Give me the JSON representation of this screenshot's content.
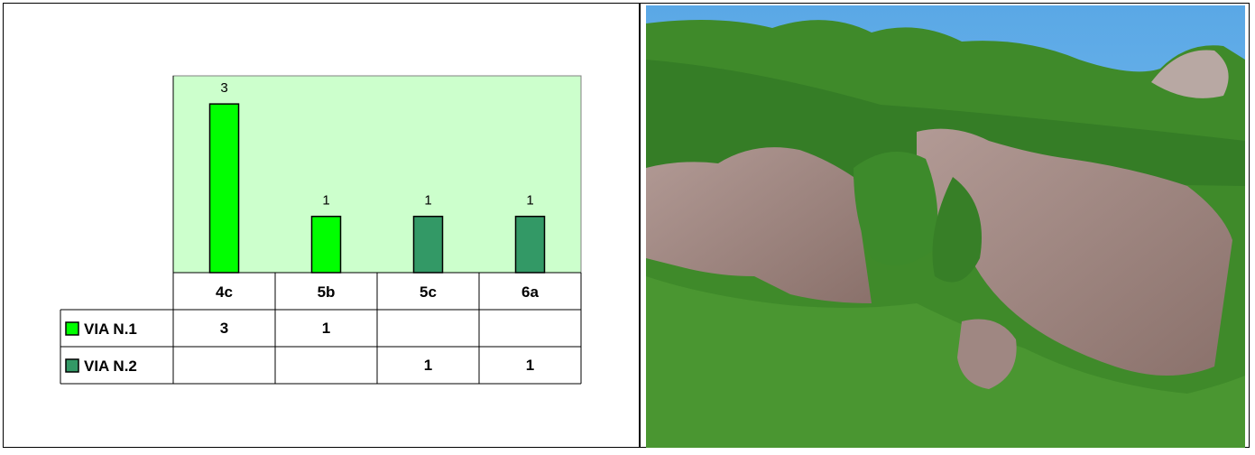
{
  "colors": {
    "plot_background": "#ccffcc",
    "series1": "#00ff00",
    "series2": "#339966",
    "sky": "#6fb6ea",
    "forest": "#3f8a2a",
    "rock": "#9c7f7a"
  },
  "chart_data": {
    "type": "bar",
    "categories": [
      "4c",
      "5b",
      "5c",
      "6a"
    ],
    "series": [
      {
        "name": "VIA N.1",
        "values": [
          3,
          1,
          null,
          null
        ],
        "color": "#00ff00"
      },
      {
        "name": "VIA N.2",
        "values": [
          null,
          null,
          1,
          1
        ],
        "color": "#339966"
      }
    ],
    "ylim": [
      0,
      3.5
    ],
    "grid": false,
    "legend": "data-table-left",
    "table": {
      "rows": [
        {
          "label": "VIA N.1",
          "cells": [
            "3",
            "1",
            "",
            ""
          ]
        },
        {
          "label": "VIA N.2",
          "cells": [
            "",
            "",
            "1",
            "1"
          ]
        }
      ]
    }
  },
  "photo": {
    "subject": "rock-face-photo"
  }
}
